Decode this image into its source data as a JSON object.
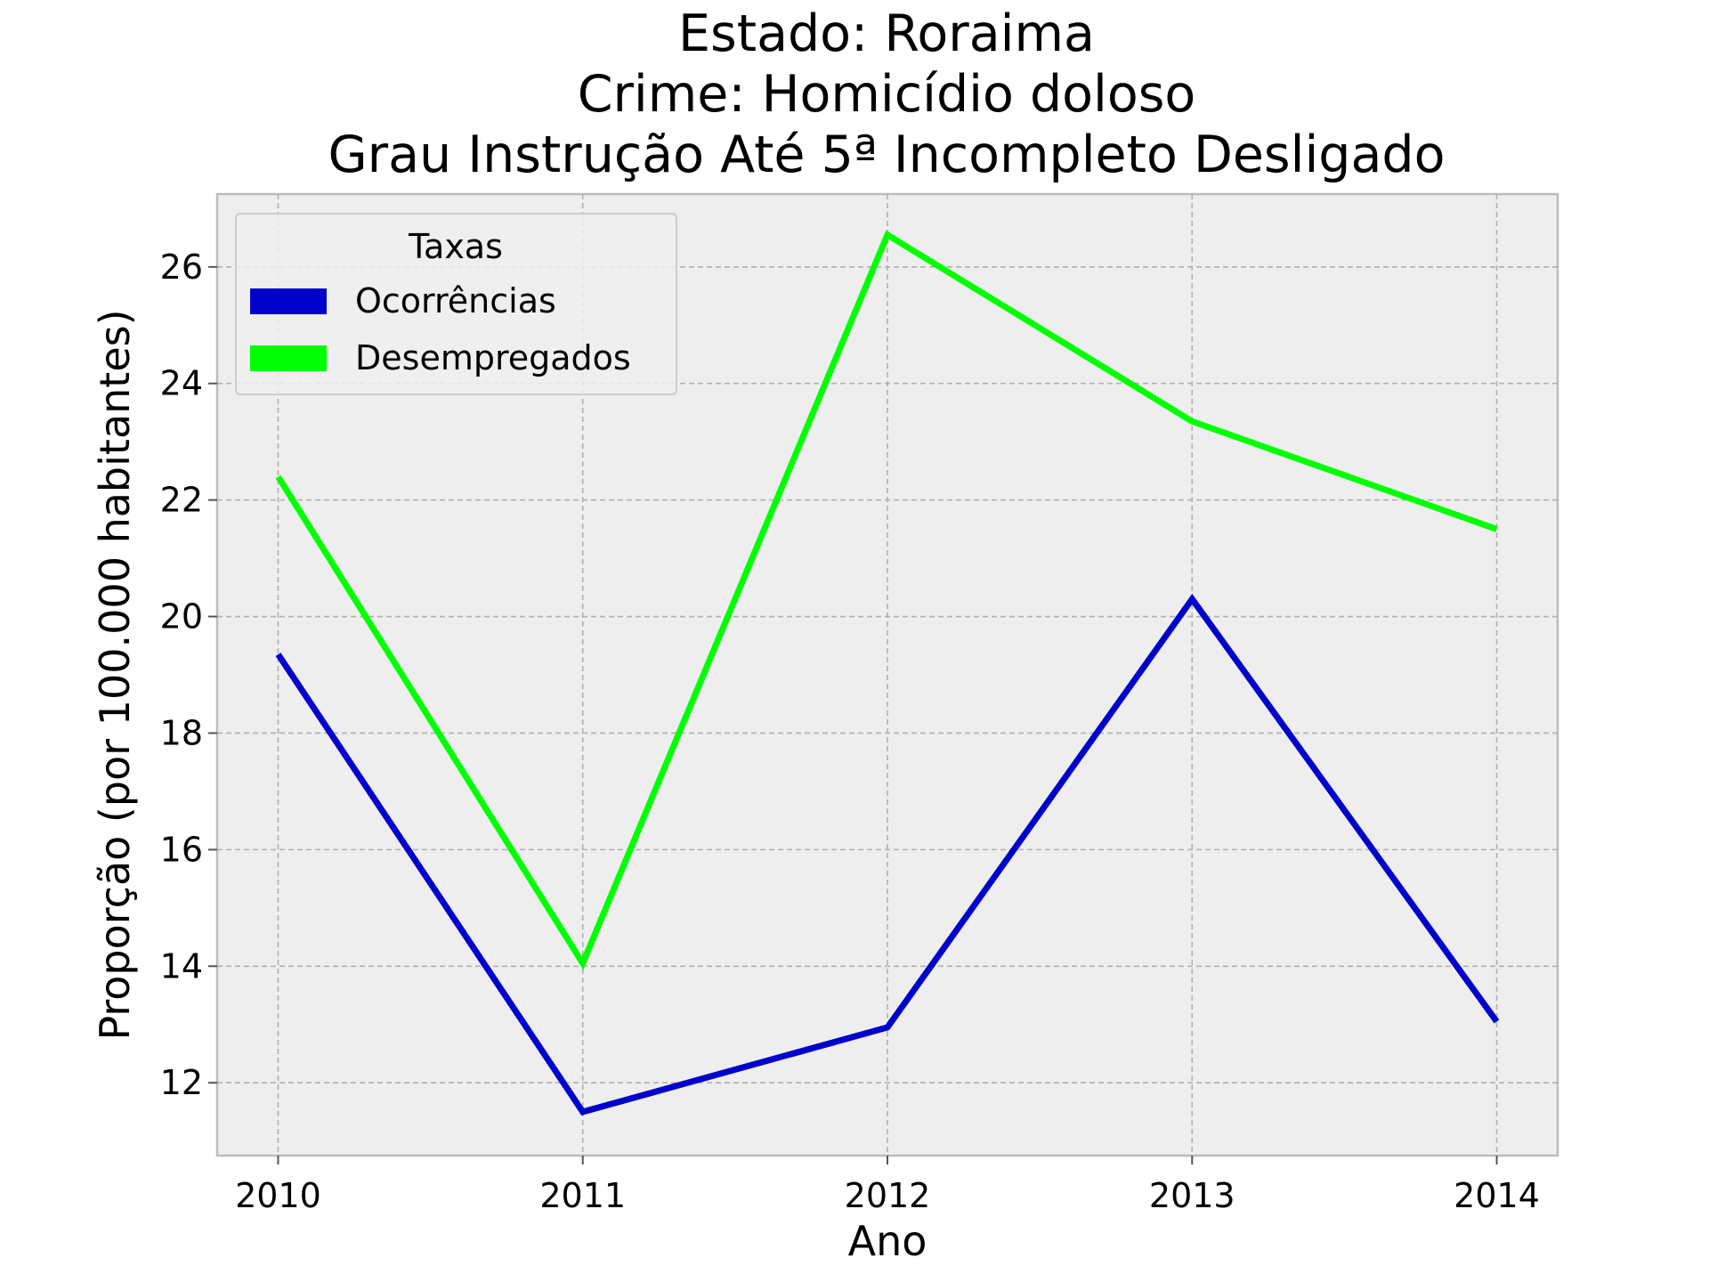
{
  "chart_data": {
    "type": "line",
    "title_lines": [
      "Estado: Roraima",
      "Crime: Homicídio doloso",
      "Grau Instrução  Até 5ª Incompleto   Desligado"
    ],
    "xlabel": "Ano",
    "ylabel": "Proporção (por 100.000 habitantes)",
    "x": [
      2010,
      2011,
      2012,
      2013,
      2014
    ],
    "x_tick_labels": [
      "2010",
      "2011",
      "2012",
      "2013",
      "2014"
    ],
    "xlim": [
      2009.8,
      2014.2
    ],
    "y_ticks": [
      12,
      14,
      16,
      18,
      20,
      22,
      24,
      26
    ],
    "y_tick_labels": [
      "12",
      "14",
      "16",
      "18",
      "20",
      "22",
      "24",
      "26"
    ],
    "ylim": [
      10.75,
      27.25
    ],
    "grid": true,
    "background": "#eeeeee",
    "legend": {
      "title": "Taxas",
      "placement": "upper-left"
    },
    "series": [
      {
        "name": "Ocorrências",
        "color": "#0000cc",
        "values": [
          19.35,
          11.5,
          12.95,
          20.3,
          13.05
        ]
      },
      {
        "name": "Desempregados",
        "color": "#00ff00",
        "values": [
          22.4,
          14.05,
          26.55,
          23.35,
          21.5
        ]
      }
    ]
  }
}
